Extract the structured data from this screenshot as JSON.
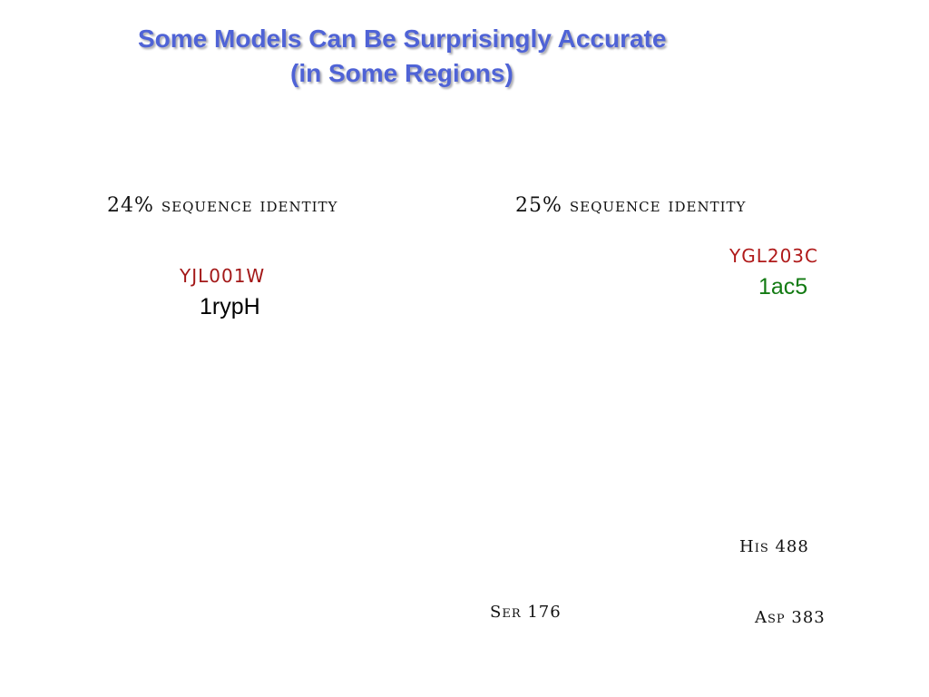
{
  "title": {
    "line1": "Some Models Can Be Surprisingly Accurate",
    "line2": "(in Some Regions)"
  },
  "left_panel": {
    "identity": "24% sequence identity",
    "yeast_orf": "YJL001W",
    "pdb_id": "1rypH"
  },
  "right_panel": {
    "identity": "25% sequence identity",
    "yeast_orf": "YGL203C",
    "pdb_id": "1ac5",
    "residues": {
      "his": "His 488",
      "ser": "Ser 176",
      "asp": "Asp 383"
    }
  },
  "colors": {
    "title": "#4f63d6",
    "left_yeast": "#a31818",
    "right_yeast": "#b01a1a",
    "right_pdb": "#127a12"
  }
}
